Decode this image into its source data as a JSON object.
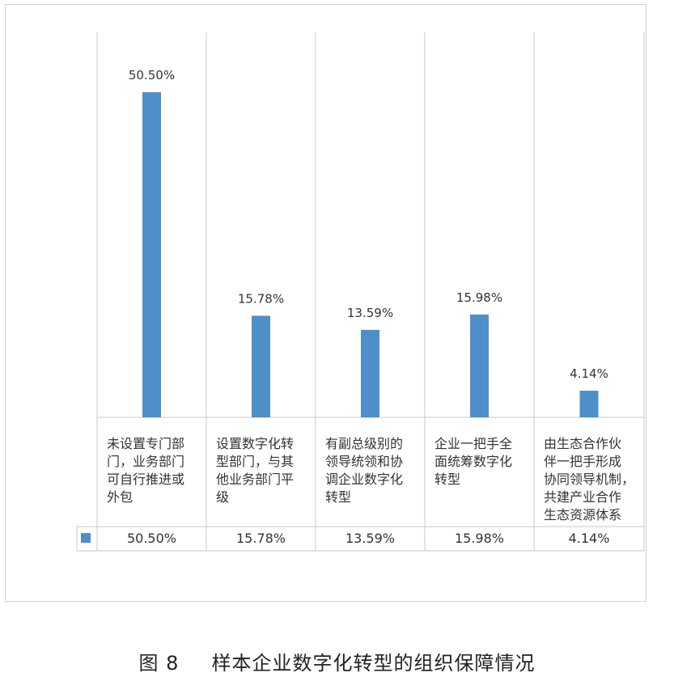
{
  "caption": {
    "figure_number": "图 8",
    "title": "样本企业数字化转型的组织保障情况"
  },
  "colors": {
    "bar": "#4e8fca",
    "grid": "#c8c8c8",
    "text": "#333333"
  },
  "chart_data": {
    "type": "bar",
    "title": "",
    "xlabel": "",
    "ylabel": "",
    "ylim": [
      0,
      60
    ],
    "grid": false,
    "legend": "data-table",
    "categories": [
      [
        "未设置专门部",
        "门，业务部门",
        "可自行推进或",
        "外包"
      ],
      [
        "设置数字化转",
        "型部门，与其",
        "他业务部门平",
        "级"
      ],
      [
        "有副总级别的",
        "领导统领和协",
        "调企业数字化",
        "转型"
      ],
      [
        "企业一把手全",
        "面统筹数字化",
        "转型"
      ],
      [
        "由生态合作伙",
        "伴一把手形成",
        "协同领导机制，",
        "共建产业合作",
        "生态资源体系"
      ]
    ],
    "values": [
      50.5,
      15.78,
      13.59,
      15.98,
      4.14
    ],
    "value_labels": [
      "50.50%",
      "15.78%",
      "13.59%",
      "15.98%",
      "4.14%"
    ]
  }
}
